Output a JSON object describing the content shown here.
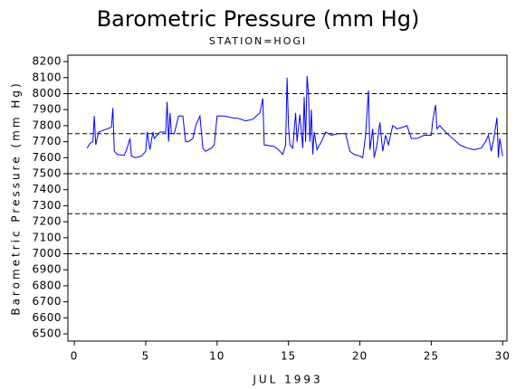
{
  "chart_data": {
    "type": "line",
    "title": "Barometric Pressure (mm Hg)",
    "subtitle": "STATION=HOGI",
    "x_label": "JUL 1993",
    "y_label": "Barometric Pressure (mm Hg)",
    "color": "#0000ff",
    "x": [
      0.9,
      1.1,
      1.3,
      1.4,
      1.5,
      1.7,
      2.0,
      2.3,
      2.6,
      2.7,
      2.8,
      3.0,
      3.5,
      3.7,
      3.9,
      4.0,
      4.3,
      4.7,
      5.0,
      5.1,
      5.3,
      5.5,
      5.6,
      5.8,
      6.0,
      6.4,
      6.5,
      6.6,
      6.7,
      6.8,
      7.0,
      7.3,
      7.6,
      7.8,
      8.0,
      8.3,
      8.5,
      8.8,
      9.0,
      9.2,
      9.6,
      9.8,
      10.0,
      10.5,
      11.0,
      11.5,
      12.0,
      12.5,
      13.0,
      13.2,
      13.3,
      14.0,
      14.3,
      14.6,
      14.8,
      14.9,
      15.0,
      15.1,
      15.3,
      15.5,
      15.6,
      15.8,
      16.0,
      16.1,
      16.2,
      16.3,
      16.4,
      16.5,
      16.6,
      16.7,
      16.8,
      17.0,
      17.3,
      17.6,
      18.0,
      18.5,
      19.0,
      19.3,
      19.6,
      20.0,
      20.2,
      20.4,
      20.6,
      20.7,
      20.9,
      21.0,
      21.2,
      21.4,
      21.6,
      21.8,
      22.0,
      22.3,
      22.6,
      23.0,
      23.3,
      23.6,
      24.0,
      24.5,
      25.0,
      25.1,
      25.3,
      25.4,
      25.6,
      26.0,
      26.5,
      27.0,
      27.5,
      28.0,
      28.5,
      28.8,
      29.0,
      29.2,
      29.4,
      29.6,
      29.7,
      29.8,
      30.0
    ],
    "values": [
      7660,
      7690,
      7700,
      7860,
      7680,
      7760,
      7770,
      7780,
      7790,
      7910,
      7640,
      7620,
      7615,
      7660,
      7720,
      7610,
      7600,
      7610,
      7640,
      7760,
      7650,
      7760,
      7720,
      7740,
      7760,
      7760,
      7950,
      7700,
      7880,
      7750,
      7750,
      7860,
      7860,
      7700,
      7700,
      7720,
      7800,
      7860,
      7660,
      7640,
      7660,
      7680,
      7860,
      7860,
      7850,
      7845,
      7830,
      7840,
      7880,
      7970,
      7680,
      7670,
      7650,
      7620,
      7680,
      8100,
      7800,
      7680,
      7660,
      7880,
      7700,
      7870,
      7660,
      7980,
      7700,
      8110,
      8000,
      7700,
      7900,
      7620,
      7760,
      7650,
      7700,
      7760,
      7740,
      7750,
      7750,
      7640,
      7620,
      7610,
      7600,
      7740,
      8020,
      7650,
      7780,
      7600,
      7680,
      7820,
      7640,
      7740,
      7680,
      7800,
      7780,
      7790,
      7800,
      7720,
      7720,
      7740,
      7740,
      7830,
      7930,
      7780,
      7800,
      7760,
      7720,
      7680,
      7660,
      7650,
      7660,
      7700,
      7740,
      7640,
      7730,
      7850,
      7600,
      7720,
      7610
    ],
    "xlim": [
      -0.45,
      30.3
    ],
    "ylim": [
      6455,
      8240
    ],
    "xticks": [
      0,
      5,
      10,
      15,
      20,
      25,
      30
    ],
    "yticks": [
      6500,
      6600,
      6700,
      6800,
      6900,
      7000,
      7100,
      7200,
      7300,
      7400,
      7500,
      7600,
      7700,
      7800,
      7900,
      8000,
      8100,
      8200
    ],
    "reference_lines": [
      7000,
      7250,
      7500,
      7750,
      8000
    ]
  }
}
